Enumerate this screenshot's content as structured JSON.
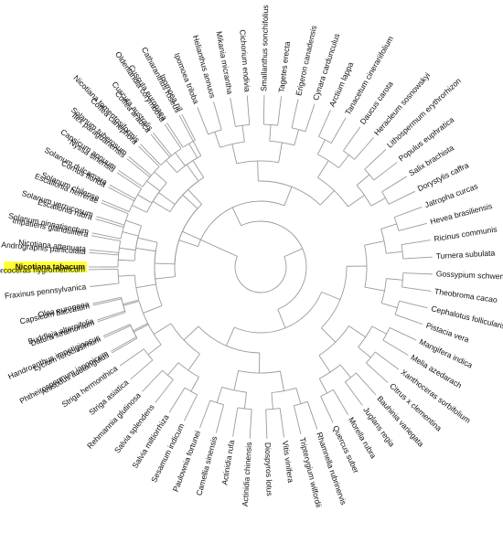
{
  "tree": {
    "highlight_color": "#ffff33",
    "branch_color": "#9a9a9a",
    "leaves": [
      {
        "name": "Nicotiana tabacum",
        "angle": 180,
        "highlight": true
      },
      {
        "name": "Nicotiana attenuata",
        "angle": 185.7
      },
      {
        "name": "Solanum pinnatisectum",
        "angle": 191.4
      },
      {
        "name": "Solanum verrucosum",
        "angle": 197.1
      },
      {
        "name": "Solanum chilense",
        "angle": 202.8
      },
      {
        "name": "Solanum dulcamara",
        "angle": 208.5
      },
      {
        "name": "Capsicum annuum",
        "angle": 214.2
      },
      {
        "name": "Solanum tuberosum",
        "angle": 219.9
      },
      {
        "name": "Nicotiana tomentosiformis",
        "angle": 225.6
      },
      {
        "name": "Cuscuta australis",
        "angle": 231.3
      },
      {
        "name": "Cuscuta europaea",
        "angle": 237.0
      },
      {
        "name": "Ipomoea nil",
        "angle": 242.7
      },
      {
        "name": "Ipomoea triloba",
        "angle": 248.4
      },
      {
        "name": "Helianthus annuus",
        "angle": 254.1
      },
      {
        "name": "Mikania micrantha",
        "angle": 259.8
      },
      {
        "name": "Cichorium endivia",
        "angle": 265.5
      },
      {
        "name": "Smallanthus sonchifolius",
        "angle": 271.2
      },
      {
        "name": "Tagetes erecta",
        "angle": 276.9
      },
      {
        "name": "Erigeron canadensis",
        "angle": 282.6
      },
      {
        "name": "Cynara cardunculus",
        "angle": 288.3
      },
      {
        "name": "Arctium lappa",
        "angle": 294.0
      },
      {
        "name": "Tanacetum cinerariifolium",
        "angle": 299.7
      },
      {
        "name": "Daucus carota",
        "angle": 305.4
      },
      {
        "name": "Heracleum sosnowskyi",
        "angle": 311.1
      },
      {
        "name": "Lithospermum erythrorhizon",
        "angle": 316.8
      },
      {
        "name": "Populus euphratica",
        "angle": 322.5
      },
      {
        "name": "Salix brachista",
        "angle": 328.2
      },
      {
        "name": "Dorystylis caffra",
        "angle": 333.9
      },
      {
        "name": "Jatropha curcas",
        "angle": 339.6
      },
      {
        "name": "Hevea brasiliensis",
        "angle": 345.3
      },
      {
        "name": "Ricinus communis",
        "angle": 351.0
      },
      {
        "name": "Turnera subulata",
        "angle": 356.7
      },
      {
        "name": "Gossypium schwendimanii",
        "angle": 362.4
      },
      {
        "name": "Theobroma cacao",
        "angle": 368.1
      },
      {
        "name": "Cephalotus follicularis",
        "angle": 373.8
      },
      {
        "name": "Pistacia vera",
        "angle": 379.5
      },
      {
        "name": "Mangifera indica",
        "angle": 385.2
      },
      {
        "name": "Melia azedarach",
        "angle": 390.9
      },
      {
        "name": "Xanthoceras sorbifolium",
        "angle": 396.6
      },
      {
        "name": "Citrus x clementina",
        "angle": 402.3
      },
      {
        "name": "Bauhinia variegata",
        "angle": 408.0
      },
      {
        "name": "Juglans regia",
        "angle": 413.7
      },
      {
        "name": "Morella rubra",
        "angle": 419.4
      },
      {
        "name": "Quercus suber",
        "angle": 425.1
      },
      {
        "name": "Rhamnella rubrinervis",
        "angle": 430.8
      },
      {
        "name": "Tripterygium wilfordii",
        "angle": 436.5
      },
      {
        "name": "Vitis vinifera",
        "angle": 442.2
      },
      {
        "name": "Diospyros lotus",
        "angle": 447.9
      },
      {
        "name": "Actinidia chinensis",
        "angle": 453.6
      },
      {
        "name": "Actinidia rufa",
        "angle": 459.3
      },
      {
        "name": "Camellia sinensis",
        "angle": 465.0
      },
      {
        "name": "Paulownia fortunei",
        "angle": 470.7
      },
      {
        "name": "Sesamum indicum",
        "angle": 476.4
      },
      {
        "name": "Salvia miltiorrhiza",
        "angle": 482.1
      },
      {
        "name": "Salvia splendens",
        "angle": 487.8
      },
      {
        "name": "Rehmannia glutinosa",
        "angle": 493.5
      },
      {
        "name": "Striga asiatica",
        "angle": 499.2
      },
      {
        "name": "Striga hermonthica",
        "angle": 504.9
      },
      {
        "name": "Phtheirospermum japonicum",
        "angle": 510.6
      },
      {
        "name": "Handroanthus impetiginosus",
        "angle": 516.3
      },
      {
        "name": "Buddleja alternifolia",
        "angle": 522.0
      },
      {
        "name": "Olea europaea",
        "angle": 527.7
      },
      {
        "name": "Fraxinus pennsylvanica",
        "angle": 533.4
      },
      {
        "name": "Dorcoceras hygrometricum",
        "angle": 539.1
      },
      {
        "name": "Andrographis paniculata",
        "angle": 544.8
      },
      {
        "name": "Impatiens glandulifera",
        "angle": 550.5
      },
      {
        "name": "Escallonia rubra",
        "angle": 556.2
      },
      {
        "name": "Escallonia herrerae",
        "angle": 561.9
      },
      {
        "name": "Cornus florida",
        "angle": 567.6
      },
      {
        "name": "Nyssa sinensis",
        "angle": 573.3
      },
      {
        "name": "Ilex paraguariensis",
        "angle": 579.0
      },
      {
        "name": "Coffea canephora",
        "angle": 584.7
      },
      {
        "name": "Coffea arabica",
        "angle": 590.4
      },
      {
        "name": "Oldenlandia corymbosa",
        "angle": 596.1
      },
      {
        "name": "Catharanthus roseus",
        "angle": 601.8
      },
      {
        "name": "Anisodus acutangulus",
        "angle": 150.0
      },
      {
        "name": "Lycium ferocissimum",
        "angle": 155.7
      },
      {
        "name": "Datura stramonium",
        "angle": 161.4
      },
      {
        "name": "Capsicum baccatum",
        "angle": 167.1
      }
    ]
  }
}
